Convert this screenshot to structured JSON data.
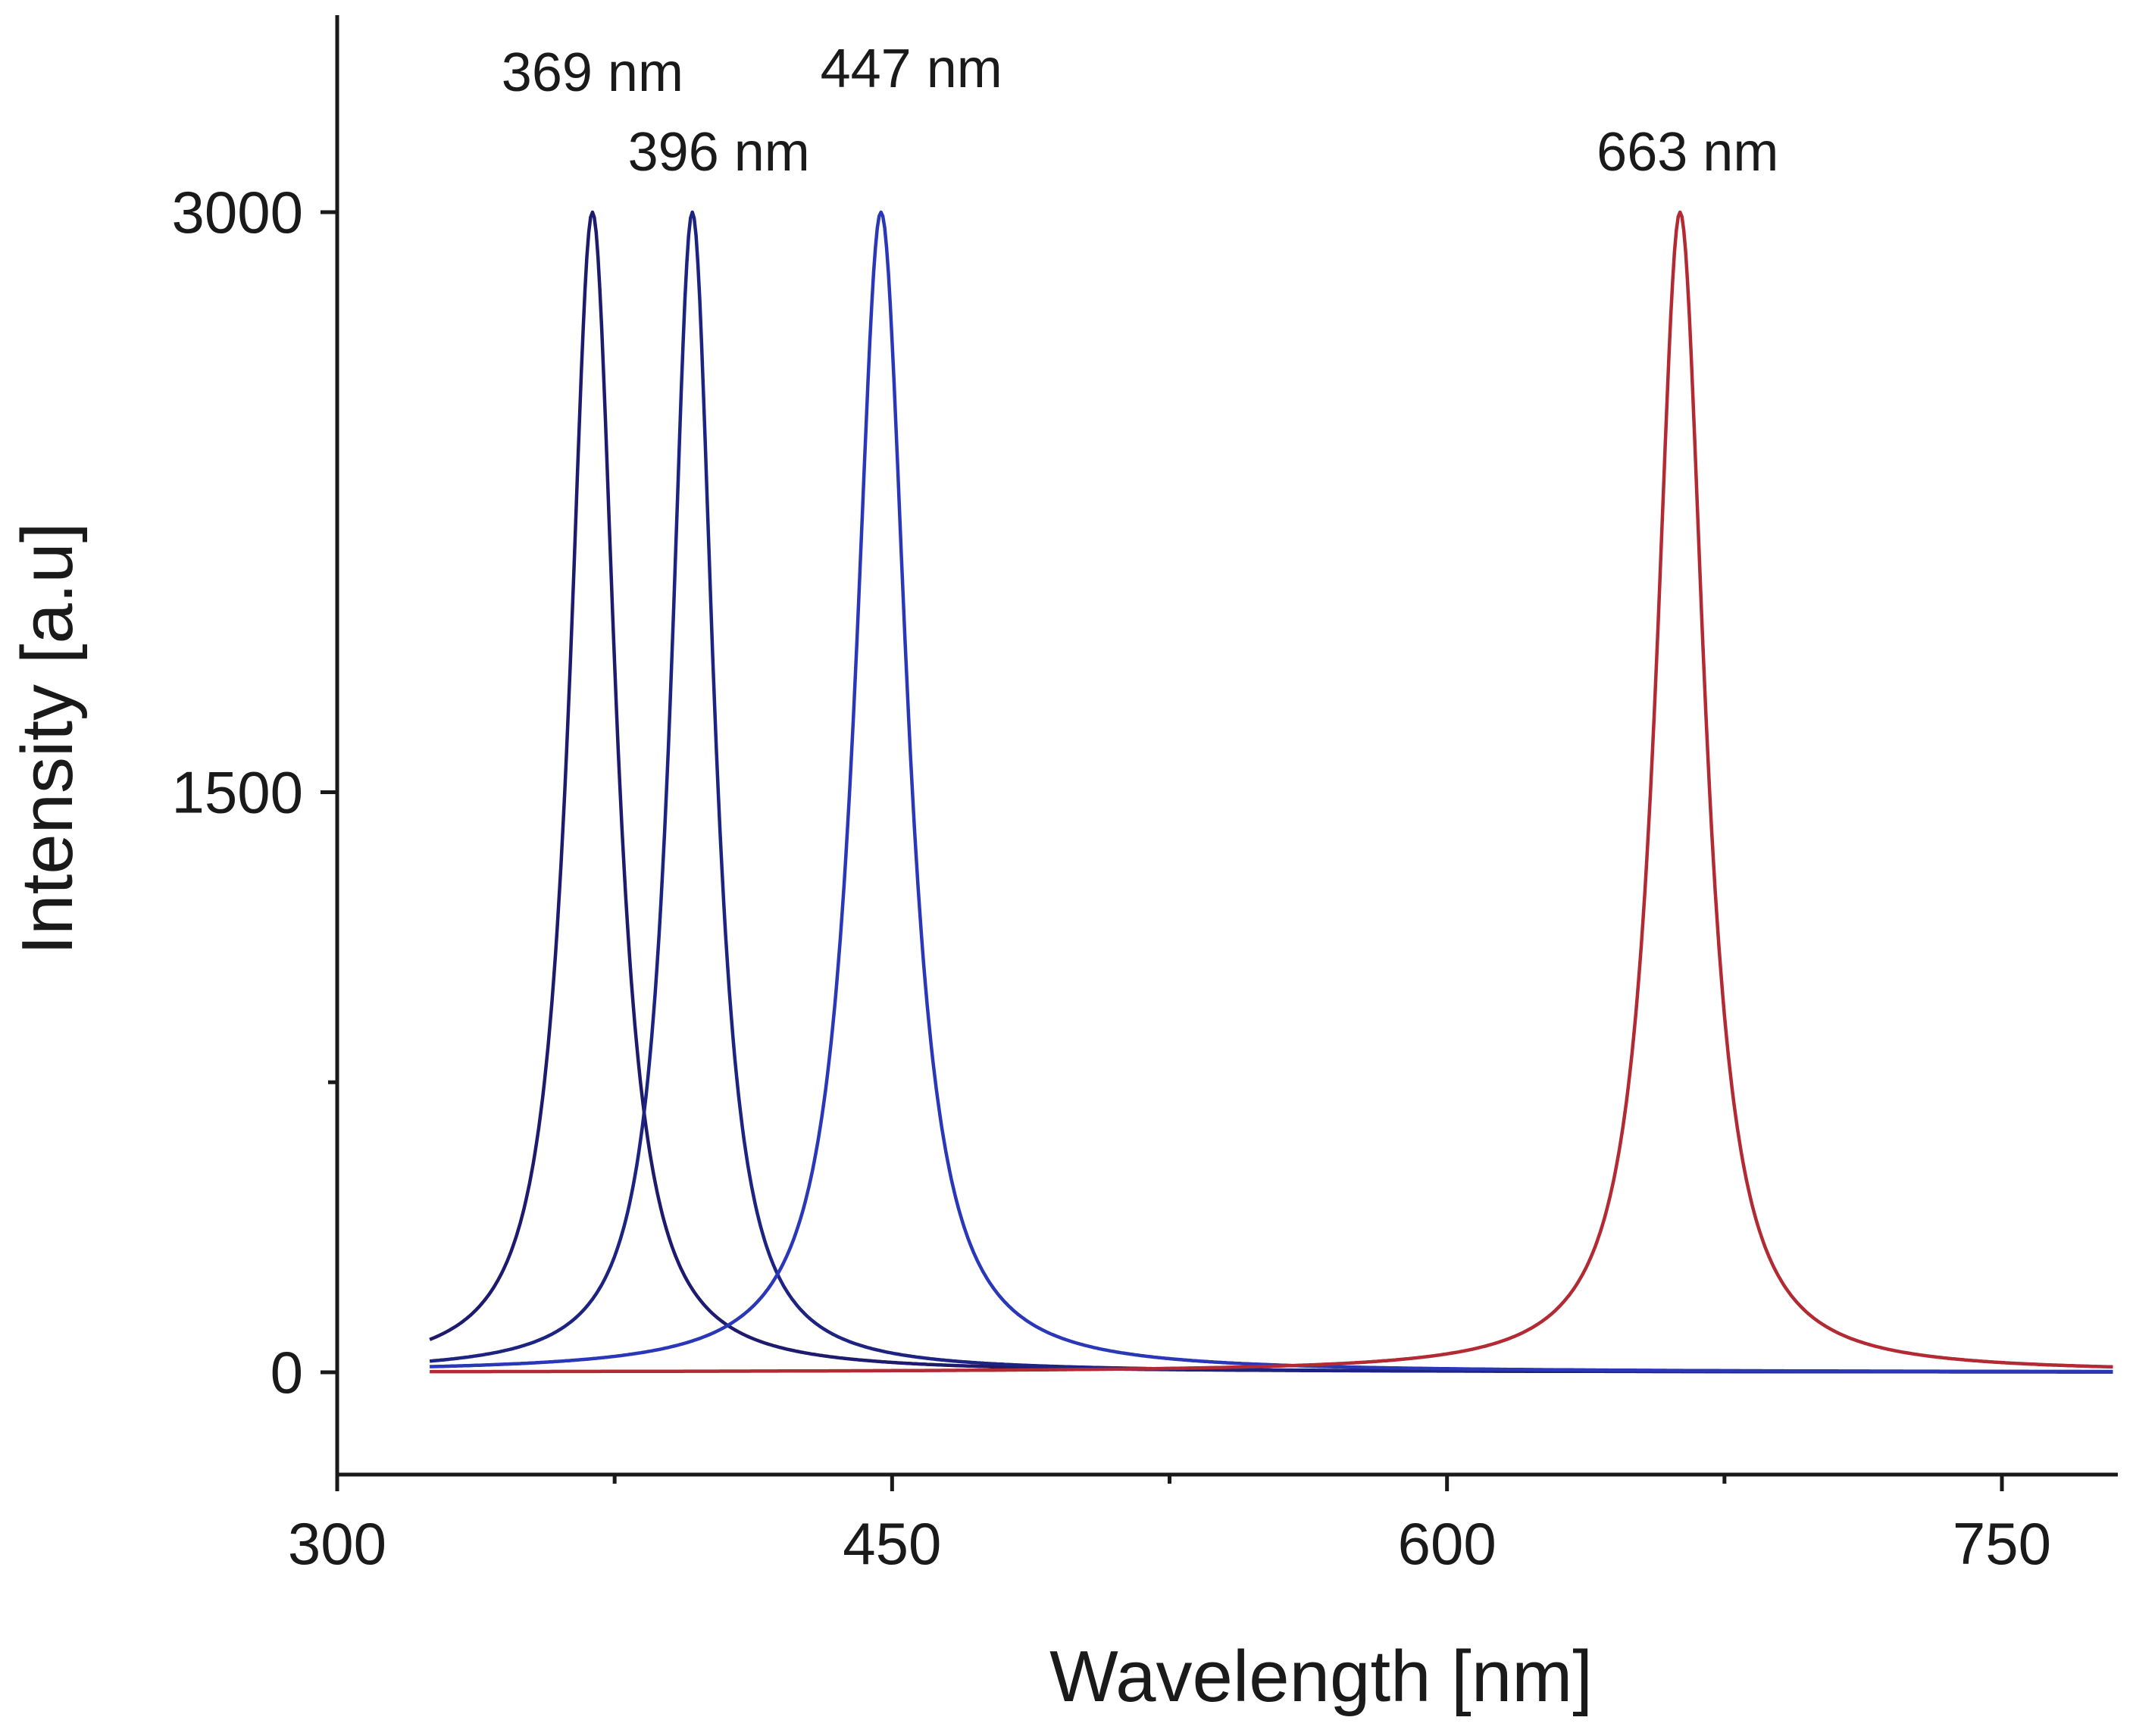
{
  "chart_data": {
    "type": "line",
    "title": "",
    "xlabel": "Wavelength [nm]",
    "ylabel": "Intensity [a.u]",
    "xlim": [
      300,
      780
    ],
    "ylim": [
      -250,
      3500
    ],
    "x_major_ticks": [
      300,
      450,
      600,
      750
    ],
    "x_minor_ticks": [
      375,
      525,
      675
    ],
    "y_major_ticks": [
      0,
      1500,
      3000
    ],
    "y_minor_ticks": [
      750
    ],
    "x_tick_labels": [
      "300",
      "450",
      "600",
      "750"
    ],
    "y_tick_labels": [
      "0",
      "1500",
      "3000"
    ],
    "grid": false,
    "x_range_plotted": [
      325,
      780
    ],
    "series": [
      {
        "name": "369 nm",
        "label": "369 nm",
        "peak_wavelength": 369,
        "peak_intensity": 3000,
        "fwhm": 15,
        "color": "#1e1a6e"
      },
      {
        "name": "396 nm",
        "label": "396 nm",
        "peak_wavelength": 396,
        "peak_intensity": 3000,
        "fwhm": 14,
        "color": "#1c2380"
      },
      {
        "name": "447 nm",
        "label": "447 nm",
        "peak_wavelength": 447,
        "peak_intensity": 3000,
        "fwhm": 17,
        "color": "#2a37b8"
      },
      {
        "name": "663 nm",
        "label": "663 nm",
        "peak_wavelength": 663,
        "peak_intensity": 3000,
        "fwhm": 16,
        "color": "#b22a33"
      }
    ]
  }
}
